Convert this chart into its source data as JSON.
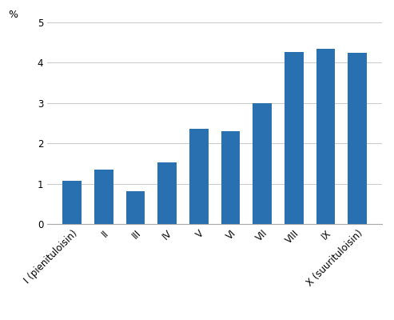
{
  "categories": [
    "I (pienituloisin)",
    "II",
    "III",
    "IV",
    "V",
    "VI",
    "VII",
    "VIII",
    "IX",
    "X (suurituloisin)"
  ],
  "values": [
    1.07,
    1.35,
    0.82,
    1.52,
    2.37,
    2.3,
    3.0,
    4.27,
    4.35,
    4.25
  ],
  "bar_color": "#2970b0",
  "ylabel": "%",
  "ylim": [
    0,
    5
  ],
  "yticks": [
    0,
    1,
    2,
    3,
    4,
    5
  ],
  "background_color": "#ffffff",
  "grid_color": "#cccccc",
  "tick_label_fontsize": 8.5,
  "ylabel_fontsize": 9
}
